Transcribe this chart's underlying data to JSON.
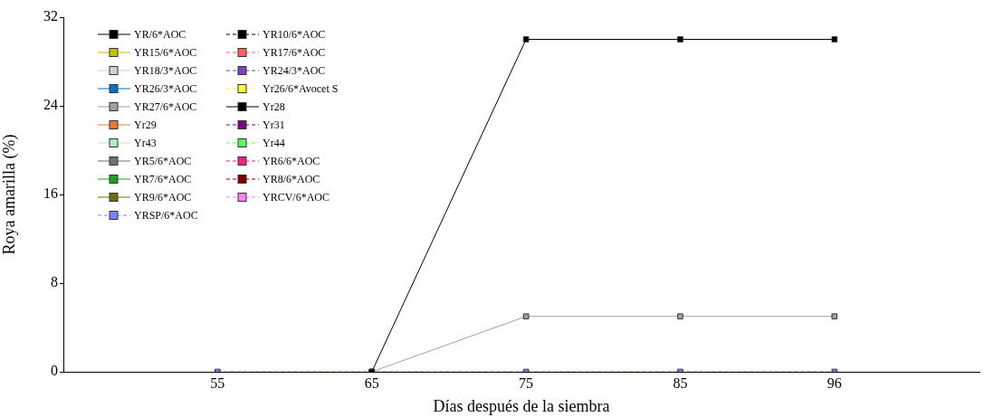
{
  "chart_data": {
    "type": "line",
    "xlabel": "Días después de la siembra",
    "ylabel": "Roya amarilla (%)",
    "categories": [
      "55",
      "65",
      "75",
      "85",
      "96"
    ],
    "ylim": [
      0,
      32
    ],
    "yticks": [
      0,
      8,
      16,
      24,
      32
    ],
    "grid": false,
    "legend": "top left",
    "marker": "square",
    "series": [
      {
        "name": "YR/6*AOC",
        "color": "#000000",
        "line_style": "solid",
        "values": [
          null,
          0,
          30,
          30,
          30
        ]
      },
      {
        "name": "YR10/6*AOC",
        "color": "#000000",
        "line_style": "dashed",
        "values": [
          null,
          null,
          null,
          null,
          null
        ]
      },
      {
        "name": "YR15/6*AOC",
        "color": "#c8c000",
        "line_style": "solid",
        "values": [
          null,
          null,
          null,
          null,
          null
        ]
      },
      {
        "name": "YR17/6*AOC",
        "color": "#ff6060",
        "line_style": "dashed",
        "values": [
          null,
          null,
          null,
          null,
          null
        ]
      },
      {
        "name": "YR18/3*AOC",
        "color": "#d0d0d0",
        "line_style": "solid",
        "values": [
          null,
          null,
          null,
          null,
          null
        ]
      },
      {
        "name": "YR24/3*AOC",
        "color": "#8040c0",
        "line_style": "dashed",
        "values": [
          null,
          null,
          null,
          null,
          null
        ]
      },
      {
        "name": "YR26/3*AOC",
        "color": "#0070c0",
        "line_style": "solid",
        "values": [
          null,
          null,
          null,
          null,
          null
        ]
      },
      {
        "name": "Yr26/6*Avocet S",
        "color": "#ffff40",
        "line_style": "dashed",
        "values": [
          null,
          null,
          null,
          null,
          null
        ]
      },
      {
        "name": "YR27/6*AOC",
        "color": "#a0a0a0",
        "line_style": "solid",
        "values": [
          null,
          0,
          5,
          5,
          5
        ]
      },
      {
        "name": "Yr28",
        "color": "#000000",
        "line_style": "solid",
        "values": [
          null,
          null,
          null,
          null,
          null
        ]
      },
      {
        "name": "Yr29",
        "color": "#f07830",
        "line_style": "solid",
        "values": [
          null,
          null,
          null,
          null,
          null
        ]
      },
      {
        "name": "Yr31",
        "color": "#800080",
        "line_style": "dashed",
        "values": [
          null,
          null,
          null,
          null,
          null
        ]
      },
      {
        "name": "Yr43",
        "color": "#b0e8c0",
        "line_style": "solid",
        "values": [
          null,
          null,
          null,
          null,
          null
        ]
      },
      {
        "name": "Yr44",
        "color": "#60ff60",
        "line_style": "dashed",
        "values": [
          null,
          null,
          null,
          null,
          null
        ]
      },
      {
        "name": "YR5/6*AOC",
        "color": "#707070",
        "line_style": "solid",
        "values": [
          null,
          null,
          null,
          null,
          null
        ]
      },
      {
        "name": "YR6/6*AOC",
        "color": "#ff2080",
        "line_style": "dashed",
        "values": [
          null,
          null,
          null,
          null,
          null
        ]
      },
      {
        "name": "YR7/6*AOC",
        "color": "#20a020",
        "line_style": "solid",
        "values": [
          null,
          null,
          null,
          null,
          null
        ]
      },
      {
        "name": "YR8/6*AOC",
        "color": "#800000",
        "line_style": "dashed",
        "values": [
          null,
          null,
          null,
          null,
          null
        ]
      },
      {
        "name": "YR9/6*AOC",
        "color": "#707000",
        "line_style": "solid",
        "values": [
          null,
          null,
          null,
          null,
          null
        ]
      },
      {
        "name": "YRCV/6*AOC",
        "color": "#ff80ff",
        "line_style": "dashed",
        "values": [
          null,
          null,
          null,
          null,
          null
        ]
      },
      {
        "name": "YRSP/6*AOC",
        "color": "#8080ff",
        "line_style": "dashed",
        "values": [
          0,
          0,
          0,
          0,
          0
        ]
      }
    ]
  }
}
